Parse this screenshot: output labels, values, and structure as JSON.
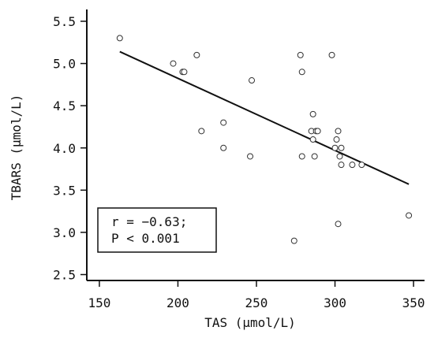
{
  "chart_data": {
    "type": "scatter",
    "xlabel": "TAS (µmol/L)",
    "ylabel": "TBARS (µmol/L)",
    "xlim": [
      142,
      357
    ],
    "ylim": [
      2.43,
      5.64
    ],
    "x_ticks": [
      150,
      200,
      250,
      300,
      350
    ],
    "y_ticks": [
      2.5,
      3.0,
      3.5,
      4.0,
      4.5,
      5.0,
      5.5
    ],
    "x_tick_labels": [
      "150",
      "200",
      "250",
      "300",
      "350"
    ],
    "y_tick_labels": [
      "2.5",
      "3.0",
      "3.5",
      "4.0",
      "4.5",
      "5.0",
      "5.5"
    ],
    "grid": false,
    "legend": "none",
    "points": [
      {
        "x": 163,
        "y": 5.3
      },
      {
        "x": 197,
        "y": 5.0
      },
      {
        "x": 203,
        "y": 4.9
      },
      {
        "x": 204,
        "y": 4.9
      },
      {
        "x": 212,
        "y": 5.1
      },
      {
        "x": 215,
        "y": 4.2
      },
      {
        "x": 229,
        "y": 4.3
      },
      {
        "x": 229,
        "y": 4.0
      },
      {
        "x": 246,
        "y": 3.9
      },
      {
        "x": 247,
        "y": 4.8
      },
      {
        "x": 274,
        "y": 2.9
      },
      {
        "x": 278,
        "y": 5.1
      },
      {
        "x": 279,
        "y": 4.9
      },
      {
        "x": 279,
        "y": 3.9
      },
      {
        "x": 285,
        "y": 4.2
      },
      {
        "x": 286,
        "y": 4.4
      },
      {
        "x": 286,
        "y": 4.1
      },
      {
        "x": 287,
        "y": 3.9
      },
      {
        "x": 288,
        "y": 4.2
      },
      {
        "x": 289,
        "y": 4.2
      },
      {
        "x": 298,
        "y": 5.1
      },
      {
        "x": 300,
        "y": 4.0
      },
      {
        "x": 301,
        "y": 4.1
      },
      {
        "x": 302,
        "y": 4.2
      },
      {
        "x": 302,
        "y": 3.1
      },
      {
        "x": 303,
        "y": 3.9
      },
      {
        "x": 304,
        "y": 4.0
      },
      {
        "x": 304,
        "y": 3.8
      },
      {
        "x": 311,
        "y": 3.8
      },
      {
        "x": 317,
        "y": 3.8
      },
      {
        "x": 347,
        "y": 3.2
      }
    ],
    "trend_line": {
      "x1": 163,
      "y1": 5.14,
      "x2": 347,
      "y2": 3.57
    },
    "annotation": {
      "line1": "r = −0.63;",
      "line2": "P < 0.001"
    },
    "colors": {
      "axis": "#111111",
      "point_stroke": "#333333",
      "trend_line": "#111111",
      "background": "#ffffff"
    }
  }
}
